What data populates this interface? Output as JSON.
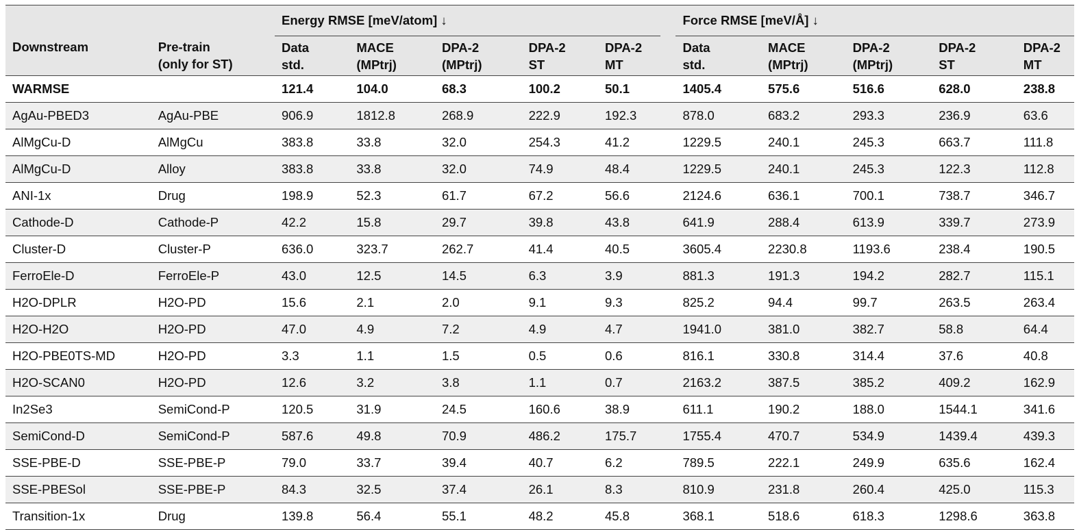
{
  "header": {
    "col_downstream": "Downstream",
    "col_pretrain": [
      "Pre-train",
      "(only for ST)"
    ],
    "group_energy": "Energy RMSE [meV/atom] ↓",
    "group_force": "Force RMSE [meV/Å] ↓",
    "energy_cols": [
      [
        "Data",
        "std."
      ],
      [
        "MACE",
        "(MPtrj)"
      ],
      [
        "DPA-2",
        "(MPtrj)"
      ],
      [
        "DPA-2",
        "ST"
      ],
      [
        "DPA-2",
        "MT"
      ]
    ],
    "force_cols": [
      [
        "Data",
        "std."
      ],
      [
        "MACE",
        "(MPtrj)"
      ],
      [
        "DPA-2",
        "(MPtrj)"
      ],
      [
        "DPA-2",
        "ST"
      ],
      [
        "DPA-2",
        "MT"
      ]
    ]
  },
  "rows": [
    [
      "WARMSE",
      "",
      "121.4",
      "104.0",
      "68.3",
      "100.2",
      "50.1",
      "1405.4",
      "575.6",
      "516.6",
      "628.0",
      "238.8"
    ],
    [
      "AgAu-PBED3",
      "AgAu-PBE",
      "906.9",
      "1812.8",
      "268.9",
      "222.9",
      "192.3",
      "878.0",
      "683.2",
      "293.3",
      "236.9",
      "63.6"
    ],
    [
      "AlMgCu-D",
      "AlMgCu",
      "383.8",
      "33.8",
      "32.0",
      "254.3",
      "41.2",
      "1229.5",
      "240.1",
      "245.3",
      "663.7",
      "111.8"
    ],
    [
      "AlMgCu-D",
      "Alloy",
      "383.8",
      "33.8",
      "32.0",
      "74.9",
      "48.4",
      "1229.5",
      "240.1",
      "245.3",
      "122.3",
      "112.8"
    ],
    [
      "ANI-1x",
      "Drug",
      "198.9",
      "52.3",
      "61.7",
      "67.2",
      "56.6",
      "2124.6",
      "636.1",
      "700.1",
      "738.7",
      "346.7"
    ],
    [
      "Cathode-D",
      "Cathode-P",
      "42.2",
      "15.8",
      "29.7",
      "39.8",
      "43.8",
      "641.9",
      "288.4",
      "613.9",
      "339.7",
      "273.9"
    ],
    [
      "Cluster-D",
      "Cluster-P",
      "636.0",
      "323.7",
      "262.7",
      "41.4",
      "40.5",
      "3605.4",
      "2230.8",
      "1193.6",
      "238.4",
      "190.5"
    ],
    [
      "FerroEle-D",
      "FerroEle-P",
      "43.0",
      "12.5",
      "14.5",
      "6.3",
      "3.9",
      "881.3",
      "191.3",
      "194.2",
      "282.7",
      "115.1"
    ],
    [
      "H2O-DPLR",
      "H2O-PD",
      "15.6",
      "2.1",
      "2.0",
      "9.1",
      "9.3",
      "825.2",
      "94.4",
      "99.7",
      "263.5",
      "263.4"
    ],
    [
      "H2O-H2O",
      "H2O-PD",
      "47.0",
      "4.9",
      "7.2",
      "4.9",
      "4.7",
      "1941.0",
      "381.0",
      "382.7",
      "58.8",
      "64.4"
    ],
    [
      "H2O-PBE0TS-MD",
      "H2O-PD",
      "3.3",
      "1.1",
      "1.5",
      "0.5",
      "0.6",
      "816.1",
      "330.8",
      "314.4",
      "37.6",
      "40.8"
    ],
    [
      "H2O-SCAN0",
      "H2O-PD",
      "12.6",
      "3.2",
      "3.8",
      "1.1",
      "0.7",
      "2163.2",
      "387.5",
      "385.2",
      "409.2",
      "162.9"
    ],
    [
      "In2Se3",
      "SemiCond-P",
      "120.5",
      "31.9",
      "24.5",
      "160.6",
      "38.9",
      "611.1",
      "190.2",
      "188.0",
      "1544.1",
      "341.6"
    ],
    [
      "SemiCond-D",
      "SemiCond-P",
      "587.6",
      "49.8",
      "70.9",
      "486.2",
      "175.7",
      "1755.4",
      "470.7",
      "534.9",
      "1439.4",
      "439.3"
    ],
    [
      "SSE-PBE-D",
      "SSE-PBE-P",
      "79.0",
      "33.7",
      "39.4",
      "40.7",
      "6.2",
      "789.5",
      "222.1",
      "249.9",
      "635.6",
      "162.4"
    ],
    [
      "SSE-PBESol",
      "SSE-PBE-P",
      "84.3",
      "32.5",
      "37.4",
      "26.1",
      "8.3",
      "810.9",
      "231.8",
      "260.4",
      "425.0",
      "115.3"
    ],
    [
      "Transition-1x",
      "Drug",
      "139.8",
      "56.4",
      "55.1",
      "48.2",
      "45.8",
      "368.1",
      "518.6",
      "618.3",
      "1298.6",
      "363.8"
    ]
  ]
}
